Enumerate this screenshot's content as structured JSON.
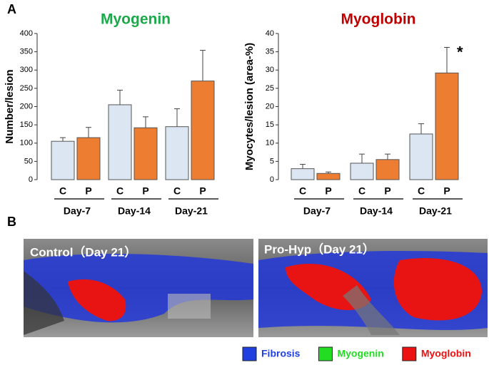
{
  "panels": {
    "a": "A",
    "b": "B"
  },
  "chart_data": [
    {
      "type": "bar",
      "title": "Myogenin",
      "title_color": "#1aaa4a",
      "ylabel": "Number/lesion",
      "categories": [
        "Day-7",
        "Day-14",
        "Day-21"
      ],
      "series": [
        {
          "name": "C",
          "color": "#dce6f2",
          "values": [
            105,
            205,
            145
          ],
          "errors": [
            10,
            40,
            49
          ]
        },
        {
          "name": "P",
          "color": "#ed7d31",
          "values": [
            115,
            142,
            270
          ],
          "errors": [
            28,
            30,
            84
          ]
        }
      ],
      "ylim": [
        0,
        400
      ],
      "yticks": [
        0,
        50,
        100,
        150,
        200,
        250,
        300,
        350,
        400
      ]
    },
    {
      "type": "bar",
      "title": "Myoglobin",
      "title_color": "#c00000",
      "ylabel": "Myocytes/lesion (area-%)",
      "categories": [
        "Day-7",
        "Day-14",
        "Day-21"
      ],
      "series": [
        {
          "name": "C",
          "color": "#dce6f2",
          "values": [
            3,
            4.5,
            12.5
          ],
          "errors": [
            1.2,
            2.5,
            2.8
          ]
        },
        {
          "name": "P",
          "color": "#ed7d31",
          "values": [
            1.7,
            5.5,
            29.2
          ],
          "errors": [
            0.4,
            1.5,
            7
          ]
        }
      ],
      "ylim": [
        0,
        40
      ],
      "yticks": [
        0,
        5,
        10,
        15,
        20,
        25,
        30,
        35,
        40
      ],
      "annotation": "*"
    }
  ],
  "images": [
    {
      "label": "Control（Day 21）"
    },
    {
      "label": "Pro-Hyp（Day 21）"
    }
  ],
  "legend": [
    {
      "name": "Fibrosis",
      "color": "#1f3fe0"
    },
    {
      "name": "Myogenin",
      "color": "#22dd22"
    },
    {
      "name": "Myoglobin",
      "color": "#ee1111"
    }
  ]
}
